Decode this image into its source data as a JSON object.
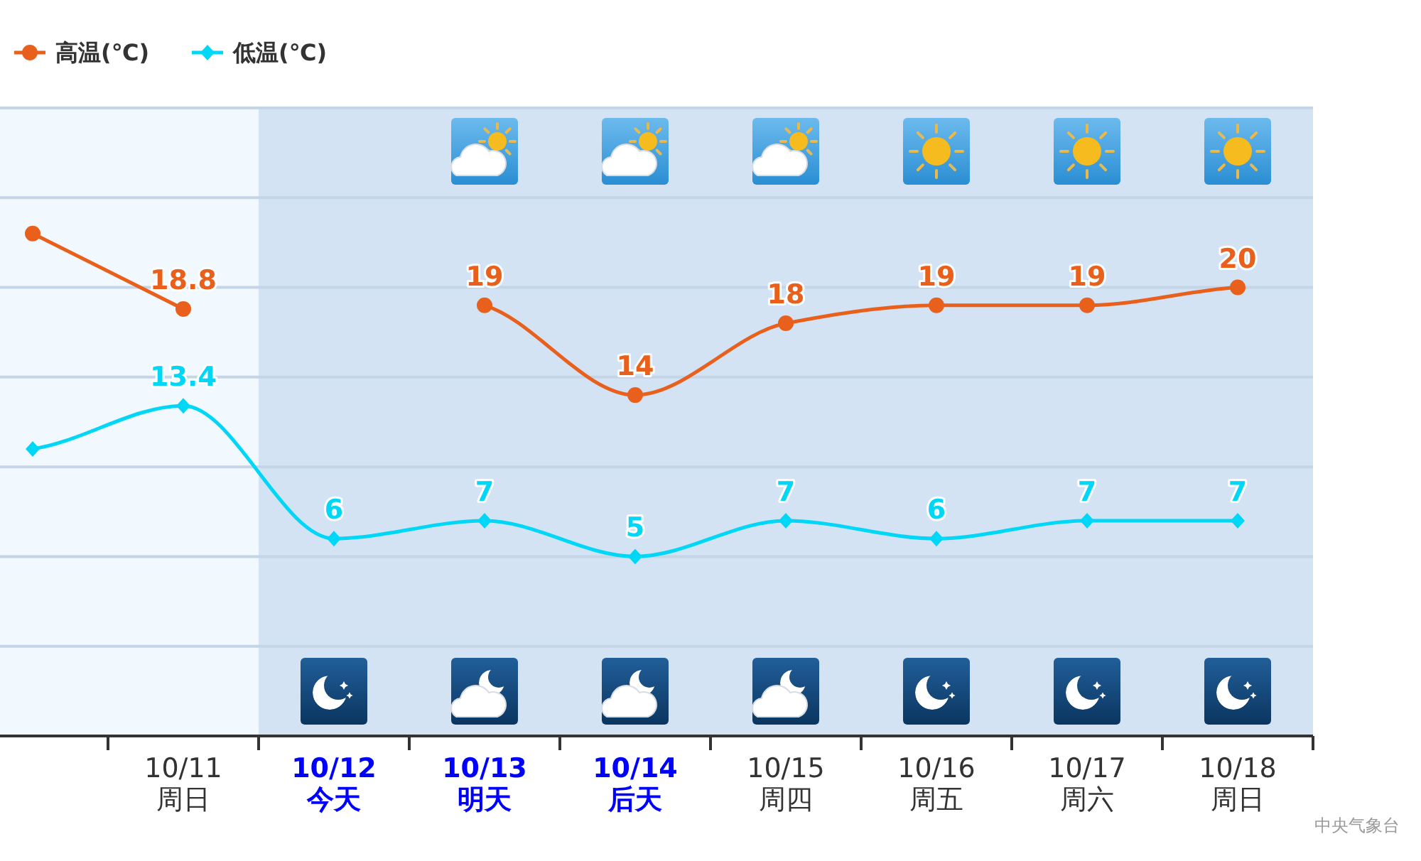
{
  "chart_data": {
    "type": "line",
    "categories": [
      null,
      "10/11\n周日",
      "10/12\n今天",
      "10/13\n明天",
      "10/14\n后天",
      "10/15\n周四",
      "10/16\n周五",
      "10/17\n周六",
      "10/18\n周日"
    ],
    "series": [
      {
        "name": "高温(℃)",
        "color": "#e8601c",
        "marker": "circle",
        "values": [
          23,
          18.8,
          null,
          19,
          14,
          18,
          19,
          19,
          20
        ],
        "value_labels": [
          null,
          "18.8",
          null,
          "19",
          "14",
          "18",
          "19",
          "19",
          "20"
        ]
      },
      {
        "name": "低温(℃)",
        "color": "#00d7f7",
        "marker": "diamond",
        "values": [
          11,
          13.4,
          6,
          7,
          5,
          7,
          6,
          7,
          7
        ],
        "value_labels": [
          null,
          "13.4",
          "6",
          "7",
          "5",
          "7",
          "6",
          "7",
          "7"
        ]
      }
    ],
    "ylim": [
      -5,
      30
    ],
    "yticks": [
      {
        "value": -5,
        "label": null
      },
      {
        "value": 0,
        "label": null
      },
      {
        "value": 5,
        "label": null
      },
      {
        "value": 10,
        "label": null
      },
      {
        "value": 15,
        "label": null
      },
      {
        "value": 20,
        "label": null
      },
      {
        "value": 25,
        "label": null
      },
      {
        "value": 30,
        "label": null
      }
    ],
    "grid": "y",
    "tick_labels": "x",
    "legend": "top left",
    "line_style": "solid",
    "bands": [
      {
        "axis": "x",
        "from": "10/12\n今天",
        "to": "10/18\n周日",
        "color": "#d3e3f4"
      }
    ],
    "annotations": [
      "中央气象台"
    ]
  }
}
